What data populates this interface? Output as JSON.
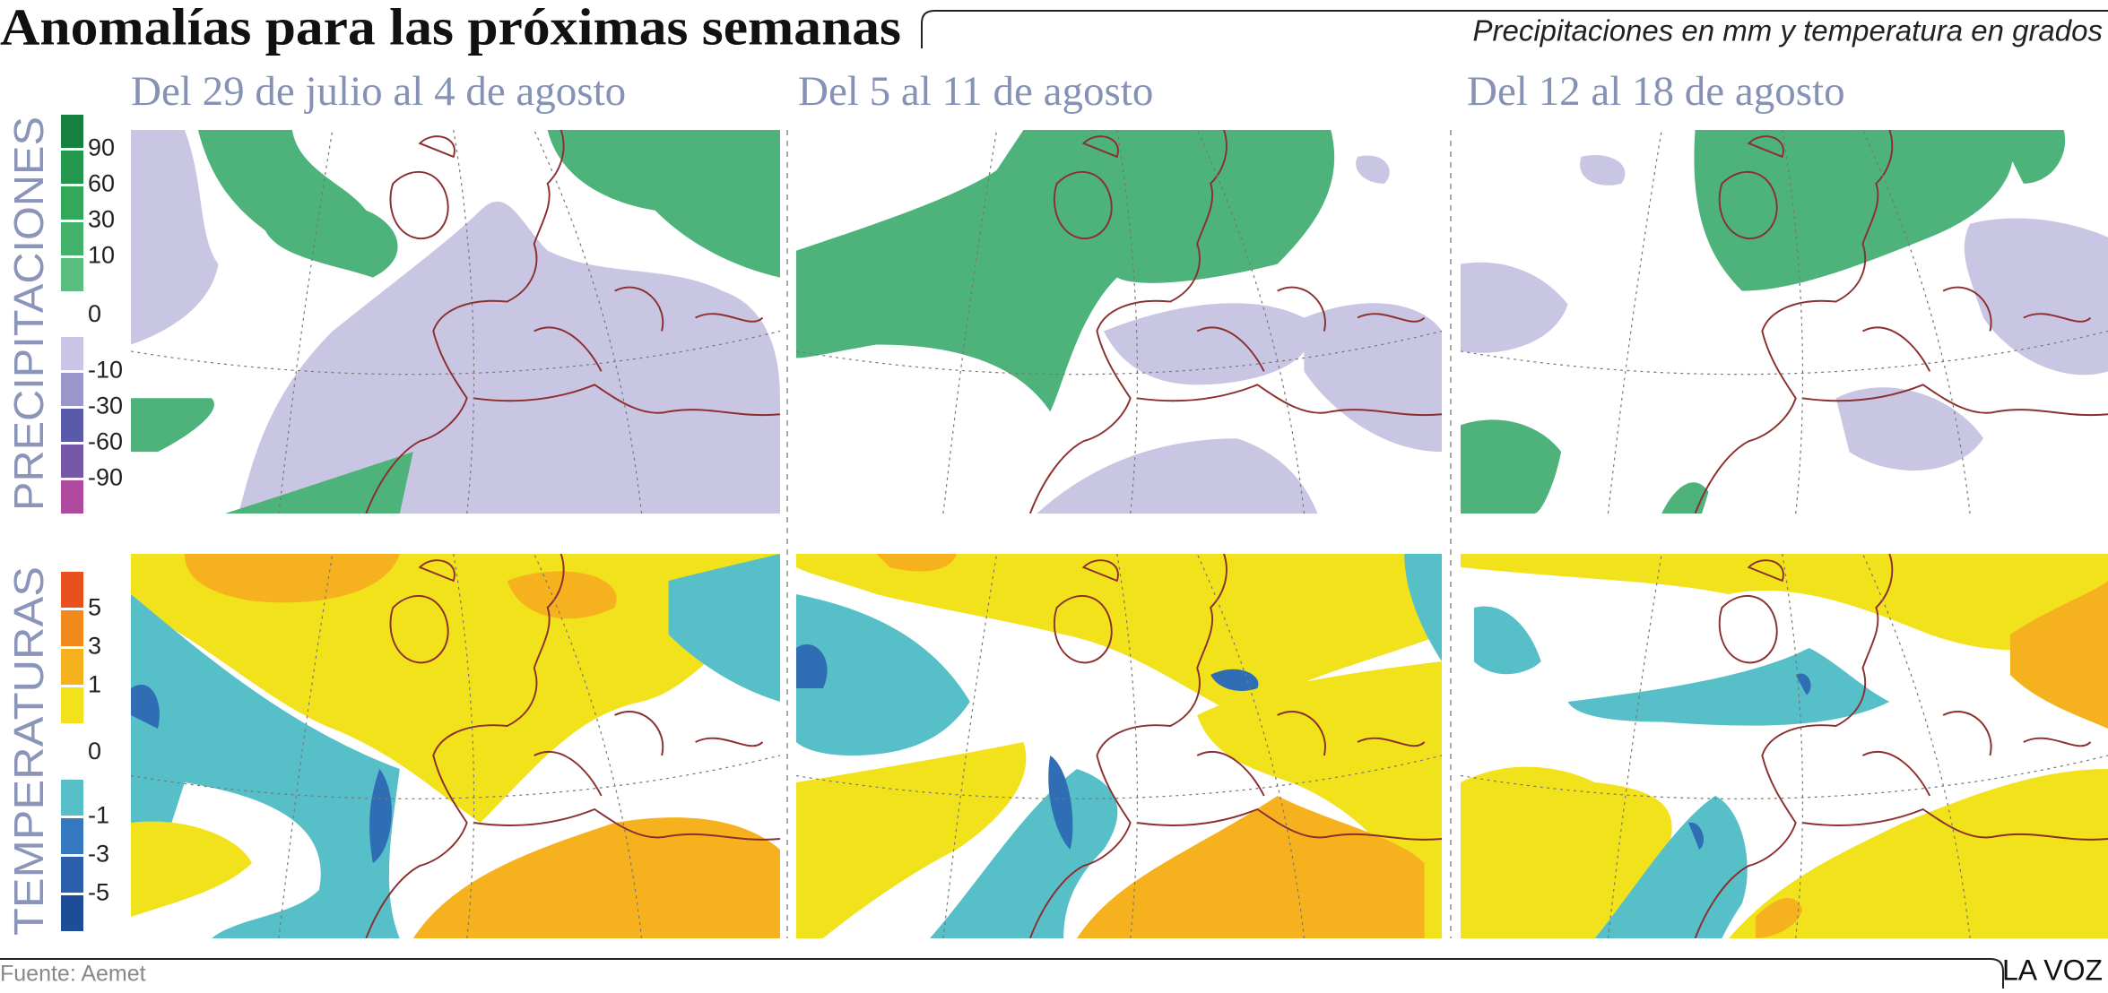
{
  "header": {
    "title": "Anomalías para las próximas semanas",
    "subtitle": "Precipitaciones en mm y temperatura en grados"
  },
  "columns": [
    "Del 29 de julio al 4 de agosto",
    "Del 5 al 11 de agosto",
    "Del 12 al 18 de agosto"
  ],
  "rows": [
    {
      "label": "PRECIPITACIONES",
      "legend": {
        "colors": [
          "#15803f",
          "#23974c",
          "#33a85b",
          "#43b26b",
          "#5cbd80",
          "#c8c5e6",
          "#9996cc",
          "#5a5aaa",
          "#7757a8",
          "#b04a9e"
        ],
        "labels": [
          90,
          60,
          30,
          10,
          0,
          -10,
          -30,
          -60,
          -90
        ]
      }
    },
    {
      "label": "TEMPERATURAS",
      "legend": {
        "colors": [
          "#e8501e",
          "#f08a1c",
          "#f5b21e",
          "#f2e21c",
          "#56bfc8",
          "#3479c0",
          "#2c5fab",
          "#1f4c98"
        ],
        "labels": [
          5,
          3,
          1,
          0,
          -1,
          -3,
          -5
        ]
      }
    }
  ],
  "footer": {
    "source": "Fuente: Aemet",
    "brand": "LA VOZ"
  }
}
